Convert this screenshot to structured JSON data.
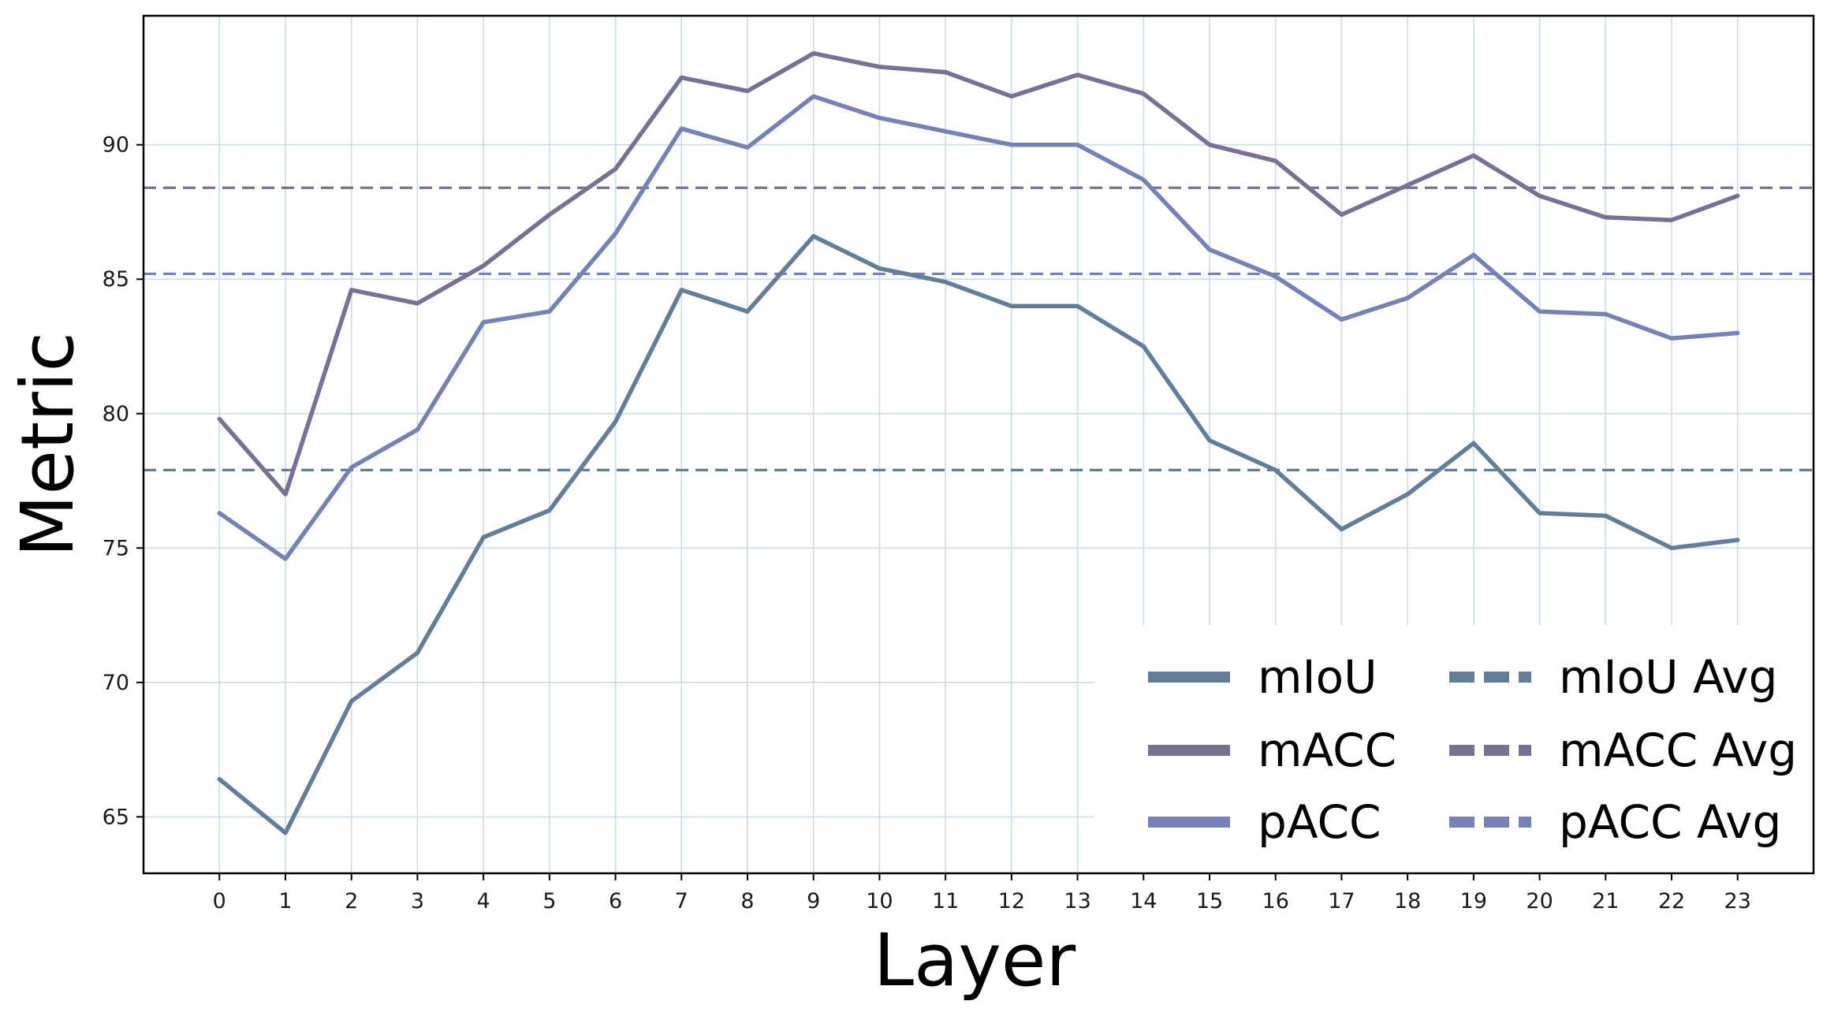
{
  "chart_data": {
    "type": "line",
    "xlabel": "Layer",
    "ylabel": "Metric",
    "x": [
      0,
      1,
      2,
      3,
      4,
      5,
      6,
      7,
      8,
      9,
      10,
      11,
      12,
      13,
      14,
      15,
      16,
      17,
      18,
      19,
      20,
      21,
      22,
      23
    ],
    "x_ticks": [
      0,
      1,
      2,
      3,
      4,
      5,
      6,
      7,
      8,
      9,
      10,
      11,
      12,
      13,
      14,
      15,
      16,
      17,
      18,
      19,
      20,
      21,
      22,
      23
    ],
    "y_ticks": [
      65,
      70,
      75,
      80,
      85,
      90
    ],
    "xlim": [
      -1.15,
      24.15
    ],
    "ylim": [
      62.9,
      94.8
    ],
    "grid": true,
    "legend_position": "lower-right",
    "series": [
      {
        "name": "mIoU",
        "color": "#637e9a",
        "values": [
          66.4,
          64.4,
          69.3,
          71.1,
          75.4,
          76.4,
          79.7,
          84.6,
          83.8,
          86.6,
          85.4,
          84.9,
          84.0,
          84.0,
          82.5,
          79.0,
          77.9,
          75.7,
          77.0,
          78.9,
          76.3,
          76.2,
          75.0,
          75.3
        ]
      },
      {
        "name": "mACC",
        "color": "#7a7096",
        "values": [
          79.8,
          77.0,
          84.6,
          84.1,
          85.5,
          87.4,
          89.1,
          92.5,
          92.0,
          93.4,
          92.9,
          92.7,
          91.8,
          92.6,
          91.9,
          90.0,
          89.4,
          87.4,
          88.5,
          89.6,
          88.1,
          87.3,
          87.2,
          88.1
        ]
      },
      {
        "name": "pACC",
        "color": "#7581b8",
        "values": [
          76.3,
          74.6,
          78.0,
          79.4,
          83.4,
          83.8,
          86.7,
          90.6,
          89.9,
          91.8,
          91.0,
          90.5,
          90.0,
          90.0,
          88.7,
          86.1,
          85.1,
          83.5,
          84.3,
          85.9,
          83.8,
          83.7,
          82.8,
          83.0
        ]
      }
    ],
    "averages": [
      {
        "name": "mIoU Avg",
        "color": "#637e9a",
        "value": 77.9
      },
      {
        "name": "mACC Avg",
        "color": "#7a7096",
        "value": 88.4
      },
      {
        "name": "pACC Avg",
        "color": "#7581b8",
        "value": 85.2
      }
    ]
  }
}
